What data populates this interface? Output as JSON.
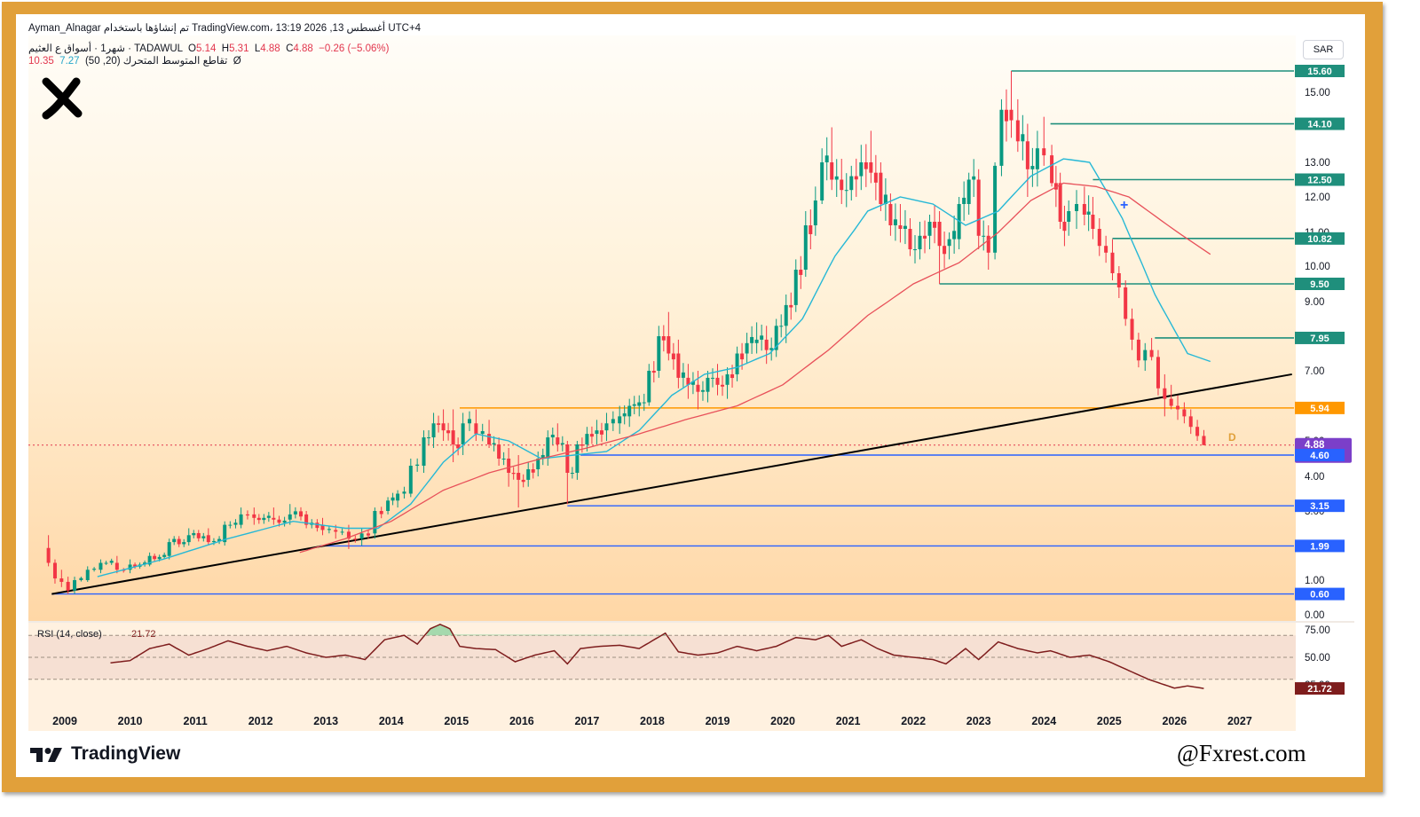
{
  "header": {
    "top_line": "Ayman_Alnagar تم إنشاؤها باستخدام TradingView.com، 13:19 2026 ,13 أغسطس UTC+4",
    "symbol_name": "شهر1 · أسواق ع العثيم · TADAWUL",
    "ohlc": [
      {
        "label": "O",
        "value": "5.14"
      },
      {
        "label": "H",
        "value": "5.31"
      },
      {
        "label": "L",
        "value": "4.88"
      },
      {
        "label": "C",
        "value": "4.88"
      }
    ],
    "change": "−0.26 (−5.06%)",
    "ma_label": "تقاطع المتوسط المتحرك (20, 50)",
    "ma_fast": "7.27",
    "ma_slow": "10.35",
    "ma_icon": "Ø",
    "currency": "SAR"
  },
  "rsi": {
    "label": "RSI (14, close)",
    "value": "21.72",
    "ticks": [
      "75.00",
      "50.00",
      "25.00"
    ],
    "upper": 70,
    "lower": 30
  },
  "brand": {
    "name": "TradingView",
    "watermark": "@Fxrest.com",
    "logo": "x-logo-icon"
  },
  "colors": {
    "frame": "#e1a03a",
    "bull": "#089981",
    "bear": "#f23645",
    "ma_fast": "#26b8d6",
    "ma_slow": "#e8515a",
    "level": "#1f8f7c",
    "support": "#2962ff",
    "orange": "#ff9800",
    "rsi": "#7e1d1d"
  },
  "chart_data": {
    "type": "candlestick",
    "interval": "1 month",
    "symbol": "TADAWUL",
    "x_ticks": [
      "2009",
      "2010",
      "2011",
      "2012",
      "2013",
      "2014",
      "2015",
      "2016",
      "2017",
      "2018",
      "2019",
      "2020",
      "2021",
      "2022",
      "2023",
      "2024",
      "2025",
      "2026",
      "2027"
    ],
    "y_ticks": [
      "15.00",
      "13.00",
      "12.00",
      "11.00",
      "10.00",
      "9.00",
      "7.00",
      "5.00",
      "4.00",
      "3.00",
      "1.00",
      "0.00"
    ],
    "ylim": [
      0,
      16
    ],
    "last_price": "4.88",
    "countdown": "18d 3h",
    "resistance_levels": [
      {
        "value": "15.60",
        "from": 2023.5
      },
      {
        "value": "14.10",
        "from": 2024.1
      },
      {
        "value": "12.50",
        "from": 2024.75
      },
      {
        "value": "10.82",
        "from": 2025.05
      },
      {
        "value": "9.50",
        "from": 2022.4
      },
      {
        "value": "7.95",
        "from": 2025.7
      }
    ],
    "orange_level": {
      "value": "5.94",
      "from": 2015.05
    },
    "support_levels": [
      {
        "value": "4.60",
        "from": 2016.9
      },
      {
        "value": "3.15",
        "from": 2016.7
      },
      {
        "value": "1.99",
        "from": 2012.9
      },
      {
        "value": "0.60",
        "from": 2008.8
      }
    ],
    "trendline": {
      "from": [
        2008.8,
        0.6
      ],
      "to": [
        2027.8,
        6.9
      ]
    },
    "pattern_label": "D",
    "ohlc_key": [
      [
        2008.75,
        1.93,
        2.3,
        1.4,
        1.5
      ],
      [
        2008.85,
        1.5,
        1.6,
        0.9,
        1.05
      ],
      [
        2008.95,
        1.05,
        1.3,
        0.8,
        0.95
      ],
      [
        2009.05,
        0.95,
        1.1,
        0.6,
        0.7
      ],
      [
        2009.15,
        0.7,
        1.1,
        0.6,
        1.0
      ],
      [
        2009.35,
        1.0,
        1.4,
        0.95,
        1.3
      ],
      [
        2009.55,
        1.3,
        1.6,
        1.2,
        1.5
      ],
      [
        2009.8,
        1.5,
        1.7,
        1.2,
        1.3
      ],
      [
        2010.0,
        1.3,
        1.6,
        1.2,
        1.45
      ],
      [
        2010.3,
        1.45,
        1.8,
        1.4,
        1.7
      ],
      [
        2010.6,
        1.7,
        2.2,
        1.6,
        2.1
      ],
      [
        2010.9,
        2.1,
        2.5,
        2.0,
        2.3
      ],
      [
        2011.2,
        2.3,
        2.5,
        2.0,
        2.1
      ],
      [
        2011.45,
        2.1,
        2.7,
        2.0,
        2.6
      ],
      [
        2011.7,
        2.6,
        3.1,
        2.5,
        2.9
      ],
      [
        2011.9,
        2.9,
        3.1,
        2.6,
        2.8
      ],
      [
        2012.2,
        2.8,
        3.1,
        2.6,
        2.75
      ],
      [
        2012.45,
        2.75,
        3.2,
        2.6,
        2.9
      ],
      [
        2012.7,
        2.9,
        3.0,
        2.5,
        2.6
      ],
      [
        2012.95,
        2.6,
        2.8,
        2.3,
        2.45
      ],
      [
        2013.15,
        2.45,
        2.6,
        2.2,
        2.4
      ],
      [
        2013.35,
        2.4,
        2.6,
        1.9,
        2.2
      ],
      [
        2013.55,
        2.2,
        2.5,
        2.0,
        2.35
      ],
      [
        2013.75,
        2.35,
        3.1,
        2.2,
        3.0
      ],
      [
        2013.95,
        3.0,
        3.4,
        2.9,
        3.3
      ],
      [
        2014.1,
        3.3,
        3.6,
        3.1,
        3.5
      ],
      [
        2014.3,
        3.5,
        4.5,
        3.4,
        4.3
      ],
      [
        2014.5,
        4.3,
        5.3,
        4.1,
        5.1
      ],
      [
        2014.65,
        5.1,
        5.8,
        4.8,
        5.5
      ],
      [
        2014.8,
        5.5,
        5.9,
        5.0,
        5.3
      ],
      [
        2014.95,
        5.3,
        5.9,
        4.4,
        4.9
      ],
      [
        2015.1,
        4.9,
        5.8,
        4.6,
        5.5
      ],
      [
        2015.3,
        5.5,
        5.9,
        5.0,
        5.2
      ],
      [
        2015.5,
        5.2,
        5.6,
        4.8,
        4.9
      ],
      [
        2015.65,
        4.9,
        5.1,
        4.3,
        4.5
      ],
      [
        2015.8,
        4.5,
        4.8,
        3.7,
        4.1
      ],
      [
        2015.95,
        4.1,
        4.6,
        3.1,
        3.9
      ],
      [
        2016.1,
        3.9,
        4.4,
        3.7,
        4.2
      ],
      [
        2016.25,
        4.2,
        4.7,
        4.0,
        4.5
      ],
      [
        2016.4,
        4.5,
        5.3,
        4.3,
        5.1
      ],
      [
        2016.55,
        5.1,
        5.5,
        4.7,
        4.9
      ],
      [
        2016.7,
        4.9,
        5.0,
        3.2,
        4.1
      ],
      [
        2016.85,
        4.1,
        5.0,
        3.9,
        4.9
      ],
      [
        2017.0,
        4.9,
        5.4,
        4.7,
        5.2
      ],
      [
        2017.15,
        5.2,
        5.6,
        4.9,
        5.3
      ],
      [
        2017.3,
        5.3,
        5.8,
        5.0,
        5.5
      ],
      [
        2017.5,
        5.5,
        6.0,
        5.2,
        5.7
      ],
      [
        2017.65,
        5.7,
        6.2,
        5.4,
        6.0
      ],
      [
        2017.8,
        6.0,
        6.3,
        5.7,
        6.1
      ],
      [
        2017.95,
        6.1,
        7.2,
        6.0,
        7.0
      ],
      [
        2018.1,
        7.0,
        8.3,
        6.8,
        8.0
      ],
      [
        2018.25,
        8.0,
        8.7,
        7.3,
        7.5
      ],
      [
        2018.4,
        7.5,
        7.9,
        6.5,
        6.8
      ],
      [
        2018.55,
        6.8,
        7.2,
        6.2,
        6.6
      ],
      [
        2018.7,
        6.6,
        7.0,
        5.9,
        6.4
      ],
      [
        2018.85,
        6.4,
        7.0,
        6.1,
        6.8
      ],
      [
        2019.0,
        6.8,
        7.2,
        6.3,
        6.6
      ],
      [
        2019.15,
        6.6,
        7.1,
        6.2,
        6.9
      ],
      [
        2019.3,
        6.9,
        7.7,
        6.7,
        7.5
      ],
      [
        2019.45,
        7.5,
        8.1,
        7.2,
        7.8
      ],
      [
        2019.6,
        7.8,
        8.4,
        7.5,
        7.9
      ],
      [
        2019.75,
        7.9,
        8.3,
        7.2,
        7.6
      ],
      [
        2019.9,
        7.6,
        8.5,
        7.4,
        8.3
      ],
      [
        2020.05,
        8.3,
        9.2,
        7.8,
        8.9
      ],
      [
        2020.2,
        8.9,
        10.2,
        8.7,
        9.9
      ],
      [
        2020.35,
        9.9,
        11.6,
        9.7,
        11.2
      ],
      [
        2020.5,
        11.2,
        12.3,
        10.9,
        11.9
      ],
      [
        2020.6,
        11.9,
        13.4,
        11.8,
        13.0
      ],
      [
        2020.75,
        13.0,
        14.0,
        12.2,
        12.5
      ],
      [
        2020.9,
        12.5,
        13.1,
        11.8,
        12.2
      ],
      [
        2021.05,
        12.2,
        12.9,
        11.9,
        12.6
      ],
      [
        2021.2,
        12.6,
        13.5,
        12.2,
        13.0
      ],
      [
        2021.35,
        13.0,
        13.9,
        12.4,
        12.7
      ],
      [
        2021.5,
        12.7,
        13.0,
        11.6,
        11.8
      ],
      [
        2021.65,
        11.8,
        12.1,
        10.9,
        11.2
      ],
      [
        2021.8,
        11.2,
        11.8,
        10.7,
        11.1
      ],
      [
        2021.95,
        11.1,
        11.4,
        10.3,
        10.5
      ],
      [
        2022.1,
        10.5,
        11.3,
        10.2,
        10.9
      ],
      [
        2022.25,
        10.9,
        11.5,
        10.5,
        11.3
      ],
      [
        2022.4,
        11.3,
        11.6,
        9.5,
        10.6
      ],
      [
        2022.55,
        10.6,
        11.0,
        10.2,
        10.8
      ],
      [
        2022.7,
        10.8,
        12.0,
        10.5,
        11.8
      ],
      [
        2022.85,
        11.8,
        12.7,
        11.5,
        12.5
      ],
      [
        2023.0,
        12.5,
        12.8,
        10.5,
        10.9
      ],
      [
        2023.15,
        10.9,
        11.2,
        9.9,
        10.4
      ],
      [
        2023.25,
        10.4,
        13.0,
        10.2,
        12.9
      ],
      [
        2023.35,
        12.9,
        14.8,
        12.6,
        14.5
      ],
      [
        2023.5,
        14.5,
        15.6,
        13.7,
        14.2
      ],
      [
        2023.6,
        14.2,
        14.8,
        13.3,
        13.6
      ],
      [
        2023.75,
        13.6,
        14.1,
        12.0,
        12.8
      ],
      [
        2023.9,
        12.8,
        13.9,
        12.3,
        13.4
      ],
      [
        2024.0,
        13.4,
        14.3,
        12.9,
        13.2
      ],
      [
        2024.12,
        13.2,
        13.5,
        12.3,
        12.4
      ],
      [
        2024.25,
        12.4,
        12.7,
        11.1,
        11.3
      ],
      [
        2024.38,
        11.3,
        11.9,
        10.9,
        11.6
      ],
      [
        2024.5,
        11.6,
        12.2,
        11.1,
        11.8
      ],
      [
        2024.62,
        11.8,
        12.3,
        11.2,
        11.5
      ],
      [
        2024.75,
        11.5,
        12.0,
        10.8,
        11.1
      ],
      [
        2024.85,
        11.1,
        11.4,
        10.3,
        10.6
      ],
      [
        2024.95,
        10.6,
        10.9,
        10.1,
        10.4
      ],
      [
        2025.05,
        10.4,
        10.8,
        9.6,
        9.8
      ],
      [
        2025.15,
        9.8,
        10.0,
        9.1,
        9.4
      ],
      [
        2025.25,
        9.4,
        9.6,
        8.3,
        8.5
      ],
      [
        2025.35,
        8.5,
        8.8,
        7.6,
        7.9
      ],
      [
        2025.45,
        7.9,
        8.1,
        7.1,
        7.3
      ],
      [
        2025.55,
        7.3,
        7.8,
        7.0,
        7.6
      ],
      [
        2025.65,
        7.6,
        7.95,
        7.3,
        7.4
      ],
      [
        2025.75,
        7.4,
        7.6,
        6.3,
        6.5
      ],
      [
        2025.85,
        6.5,
        6.9,
        5.7,
        6.2
      ],
      [
        2025.95,
        6.2,
        6.6,
        5.9,
        6.0
      ],
      [
        2026.05,
        6.0,
        6.3,
        5.6,
        5.9
      ],
      [
        2026.15,
        5.9,
        6.1,
        5.5,
        5.7
      ],
      [
        2026.25,
        5.7,
        5.9,
        5.2,
        5.4
      ],
      [
        2026.35,
        5.4,
        5.6,
        5.0,
        5.14
      ],
      [
        2026.45,
        5.14,
        5.31,
        4.88,
        4.88
      ]
    ],
    "ma20_key": [
      [
        2009.5,
        1.1
      ],
      [
        2010.5,
        1.6
      ],
      [
        2011.5,
        2.2
      ],
      [
        2012.5,
        2.7
      ],
      [
        2013.3,
        2.5
      ],
      [
        2013.8,
        2.5
      ],
      [
        2014.3,
        3.2
      ],
      [
        2014.8,
        4.4
      ],
      [
        2015.3,
        5.2
      ],
      [
        2015.8,
        5.0
      ],
      [
        2016.3,
        4.5
      ],
      [
        2016.8,
        4.6
      ],
      [
        2017.3,
        4.7
      ],
      [
        2017.8,
        5.3
      ],
      [
        2018.3,
        6.3
      ],
      [
        2018.8,
        6.9
      ],
      [
        2019.3,
        7.1
      ],
      [
        2019.8,
        7.5
      ],
      [
        2020.3,
        8.5
      ],
      [
        2020.8,
        10.3
      ],
      [
        2021.3,
        11.6
      ],
      [
        2021.8,
        12.0
      ],
      [
        2022.3,
        11.8
      ],
      [
        2022.8,
        11.2
      ],
      [
        2023.3,
        11.6
      ],
      [
        2023.8,
        12.6
      ],
      [
        2024.3,
        13.1
      ],
      [
        2024.7,
        13.0
      ],
      [
        2025.2,
        11.4
      ],
      [
        2025.7,
        9.2
      ],
      [
        2026.2,
        7.5
      ],
      [
        2026.55,
        7.27
      ]
    ],
    "ma50_key": [
      [
        2012.6,
        1.8
      ],
      [
        2013.3,
        2.2
      ],
      [
        2014.0,
        2.7
      ],
      [
        2014.8,
        3.6
      ],
      [
        2015.5,
        4.1
      ],
      [
        2016.3,
        4.5
      ],
      [
        2017.0,
        4.8
      ],
      [
        2017.8,
        5.2
      ],
      [
        2018.5,
        5.6
      ],
      [
        2019.3,
        6.0
      ],
      [
        2020.0,
        6.6
      ],
      [
        2020.7,
        7.6
      ],
      [
        2021.3,
        8.6
      ],
      [
        2022.0,
        9.5
      ],
      [
        2022.7,
        10.1
      ],
      [
        2023.3,
        11.0
      ],
      [
        2023.8,
        11.9
      ],
      [
        2024.3,
        12.4
      ],
      [
        2024.8,
        12.3
      ],
      [
        2025.3,
        12.0
      ],
      [
        2025.9,
        11.2
      ],
      [
        2026.55,
        10.35
      ]
    ],
    "rsi_key": [
      [
        2009.7,
        45
      ],
      [
        2010.0,
        47
      ],
      [
        2010.3,
        58
      ],
      [
        2010.6,
        62
      ],
      [
        2010.9,
        52
      ],
      [
        2011.2,
        58
      ],
      [
        2011.5,
        65
      ],
      [
        2011.8,
        60
      ],
      [
        2012.1,
        56
      ],
      [
        2012.4,
        60
      ],
      [
        2012.7,
        54
      ],
      [
        2013.0,
        50
      ],
      [
        2013.3,
        52
      ],
      [
        2013.6,
        48
      ],
      [
        2013.9,
        66
      ],
      [
        2014.2,
        70
      ],
      [
        2014.4,
        62
      ],
      [
        2014.6,
        76
      ],
      [
        2014.75,
        80
      ],
      [
        2014.9,
        76
      ],
      [
        2015.05,
        60
      ],
      [
        2015.3,
        58
      ],
      [
        2015.6,
        57
      ],
      [
        2015.9,
        46
      ],
      [
        2016.2,
        52
      ],
      [
        2016.5,
        56
      ],
      [
        2016.7,
        44
      ],
      [
        2016.9,
        58
      ],
      [
        2017.2,
        60
      ],
      [
        2017.5,
        61
      ],
      [
        2017.8,
        58
      ],
      [
        2018.0,
        65
      ],
      [
        2018.2,
        72
      ],
      [
        2018.4,
        55
      ],
      [
        2018.7,
        52
      ],
      [
        2019.0,
        54
      ],
      [
        2019.3,
        60
      ],
      [
        2019.6,
        56
      ],
      [
        2019.9,
        60
      ],
      [
        2020.2,
        68
      ],
      [
        2020.5,
        66
      ],
      [
        2020.7,
        70
      ],
      [
        2020.9,
        60
      ],
      [
        2021.2,
        66
      ],
      [
        2021.45,
        58
      ],
      [
        2021.7,
        52
      ],
      [
        2022.0,
        50
      ],
      [
        2022.3,
        48
      ],
      [
        2022.5,
        44
      ],
      [
        2022.8,
        58
      ],
      [
        2023.0,
        48
      ],
      [
        2023.3,
        64
      ],
      [
        2023.6,
        58
      ],
      [
        2023.9,
        54
      ],
      [
        2024.1,
        56
      ],
      [
        2024.4,
        50
      ],
      [
        2024.7,
        52
      ],
      [
        2025.0,
        46
      ],
      [
        2025.3,
        38
      ],
      [
        2025.6,
        30
      ],
      [
        2025.8,
        26
      ],
      [
        2026.0,
        22
      ],
      [
        2026.2,
        24
      ],
      [
        2026.45,
        21.72
      ]
    ]
  }
}
